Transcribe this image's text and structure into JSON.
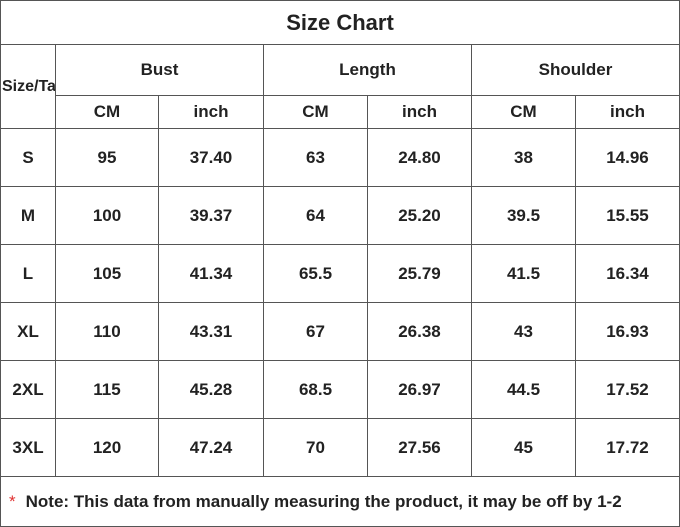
{
  "title": "Size Chart",
  "header": {
    "corner": "Size/Ta",
    "groups": [
      "Bust",
      "Length",
      "Shoulder"
    ],
    "units": [
      "CM",
      "inch",
      "CM",
      "inch",
      "CM",
      "inch"
    ]
  },
  "rows": [
    [
      "S",
      "95",
      "37.40",
      "63",
      "24.80",
      "38",
      "14.96"
    ],
    [
      "M",
      "100",
      "39.37",
      "64",
      "25.20",
      "39.5",
      "15.55"
    ],
    [
      "L",
      "105",
      "41.34",
      "65.5",
      "25.79",
      "41.5",
      "16.34"
    ],
    [
      "XL",
      "110",
      "43.31",
      "67",
      "26.38",
      "43",
      "16.93"
    ],
    [
      "2XL",
      "115",
      "45.28",
      "68.5",
      "26.97",
      "44.5",
      "17.52"
    ],
    [
      "3XL",
      "120",
      "47.24",
      "70",
      "27.56",
      "45",
      "17.72"
    ]
  ],
  "note": {
    "star": "*",
    "text": "Note: This data from manually measuring the product, it may be off by 1-2"
  }
}
